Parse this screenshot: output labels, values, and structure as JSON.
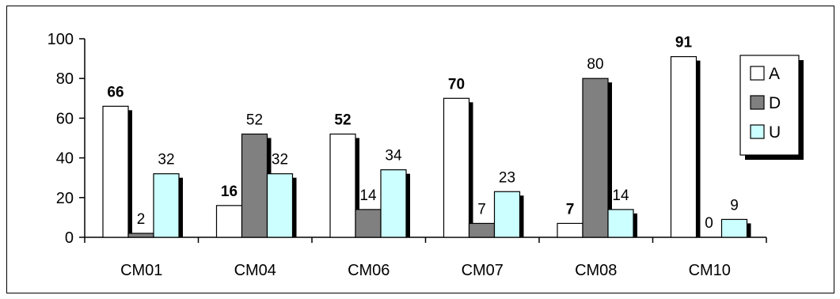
{
  "chart_data": {
    "type": "bar",
    "title": "",
    "xlabel": "",
    "ylabel": "",
    "categories": [
      "CM01",
      "CM04",
      "CM06",
      "CM07",
      "CM08",
      "CM10"
    ],
    "series": [
      {
        "name": "A",
        "values": [
          66,
          16,
          52,
          70,
          7,
          91
        ],
        "color": "#ffffff",
        "label_bold": true
      },
      {
        "name": "D",
        "values": [
          2,
          52,
          14,
          7,
          80,
          0
        ],
        "color": "#808080",
        "label_bold": false
      },
      {
        "name": "U",
        "values": [
          32,
          32,
          34,
          23,
          14,
          9
        ],
        "color": "#ccffff",
        "label_bold": false
      }
    ],
    "ylim": [
      0,
      100
    ],
    "yticks": [
      0,
      20,
      40,
      60,
      80,
      100
    ],
    "grid": false,
    "legend_position": "right",
    "bar_shadow": true
  }
}
